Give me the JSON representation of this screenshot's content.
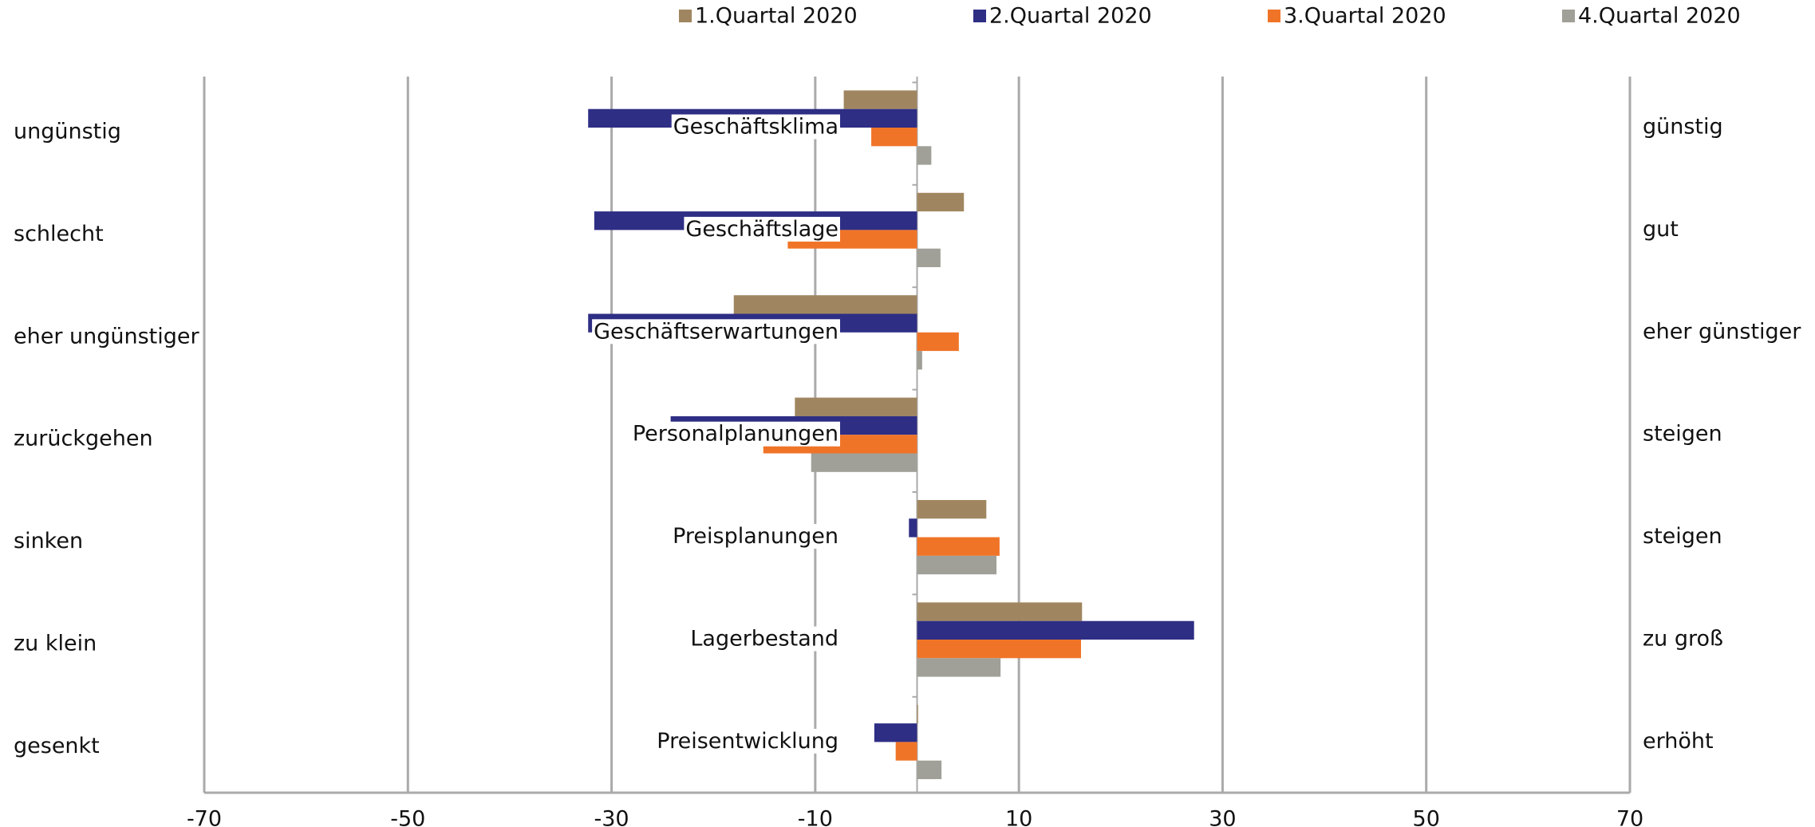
{
  "chart_data": {
    "type": "bar",
    "orientation": "horizontal",
    "categories": [
      "Geschäftsklima",
      "Geschäftslage",
      "Geschäftserwartungen",
      "Personalplanungen",
      "Preisplanungen",
      "Lagerbestand",
      "Preisentwicklung"
    ],
    "left_labels": [
      "ungünstig",
      "schlecht",
      "eher ungünstiger",
      "zurückgehen",
      "sinken",
      "zu klein",
      "gesenkt"
    ],
    "right_labels": [
      "günstig",
      "gut",
      "eher günstiger",
      "steigen",
      "steigen",
      "zu groß",
      "erhöht"
    ],
    "series": [
      {
        "name": "1.Quartal 2020",
        "color": "#a08660",
        "values": [
          -7.2,
          4.6,
          -18,
          -12,
          6.8,
          16.2,
          0.1
        ]
      },
      {
        "name": "2.Quartal 2020",
        "color": "#2e2e85",
        "values": [
          -32.3,
          -31.7,
          -32.3,
          -24.2,
          -0.8,
          27.2,
          -4.2
        ]
      },
      {
        "name": "3.Quartal 2020",
        "color": "#f07428",
        "values": [
          -4.5,
          -12.7,
          4.1,
          -15.1,
          8.1,
          16.1,
          -2.1
        ]
      },
      {
        "name": "4.Quartal 2020",
        "color": "#a0a098",
        "values": [
          1.4,
          2.3,
          0.5,
          -10.4,
          7.8,
          8.2,
          2.4
        ]
      }
    ],
    "xlim": [
      -70,
      70
    ],
    "xticks": [
      -70,
      -50,
      -30,
      -10,
      10,
      30,
      50,
      70
    ],
    "grid": true
  }
}
